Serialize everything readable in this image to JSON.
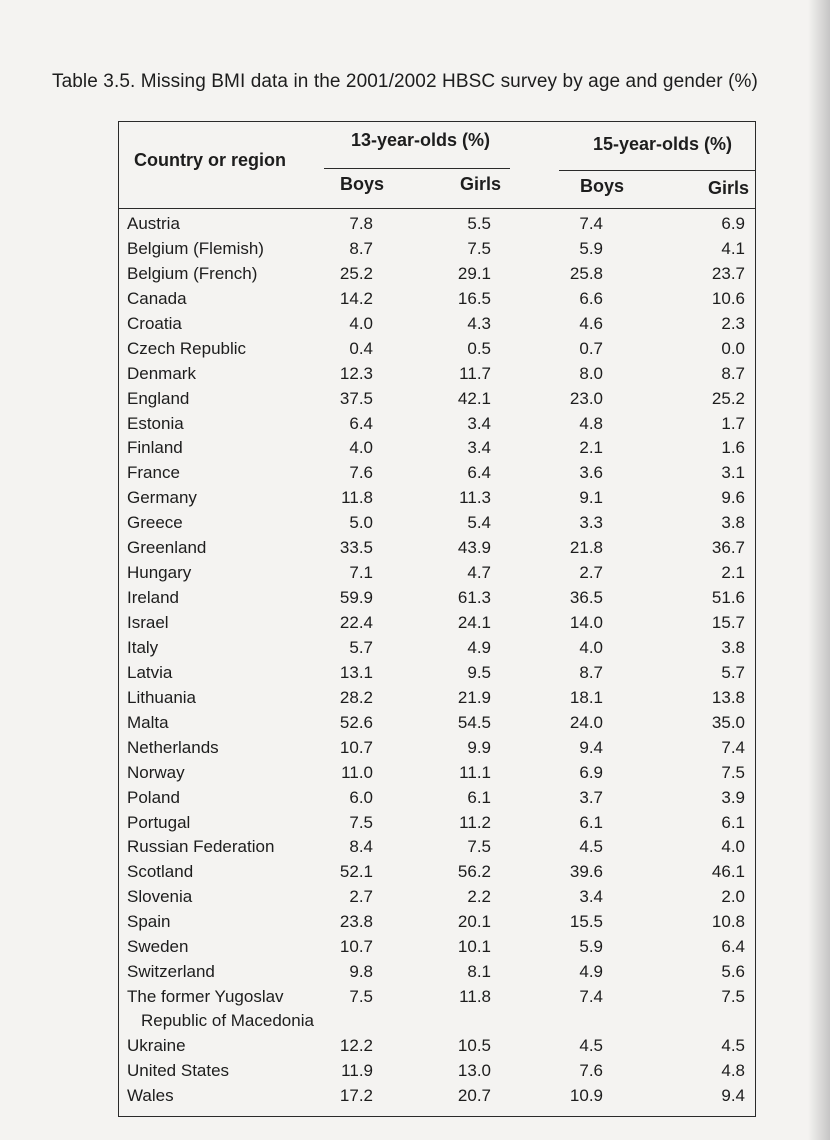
{
  "caption": "Table 3.5. Missing BMI data in the 2001/2002 HBSC survey by age and gender (%)",
  "headers": {
    "country": "Country or region",
    "age13": "13-year-olds (%)",
    "age15": "15-year-olds (%)",
    "boys": "Boys",
    "girls": "Girls"
  },
  "rows": [
    {
      "name": "Austria",
      "b13": "7.8",
      "g13": "5.5",
      "b15": "7.4",
      "g15": "6.9"
    },
    {
      "name": "Belgium (Flemish)",
      "b13": "8.7",
      "g13": "7.5",
      "b15": "5.9",
      "g15": "4.1"
    },
    {
      "name": "Belgium (French)",
      "b13": "25.2",
      "g13": "29.1",
      "b15": "25.8",
      "g15": "23.7"
    },
    {
      "name": "Canada",
      "b13": "14.2",
      "g13": "16.5",
      "b15": "6.6",
      "g15": "10.6"
    },
    {
      "name": "Croatia",
      "b13": "4.0",
      "g13": "4.3",
      "b15": "4.6",
      "g15": "2.3"
    },
    {
      "name": "Czech Republic",
      "b13": "0.4",
      "g13": "0.5",
      "b15": "0.7",
      "g15": "0.0"
    },
    {
      "name": "Denmark",
      "b13": "12.3",
      "g13": "11.7",
      "b15": "8.0",
      "g15": "8.7"
    },
    {
      "name": "England",
      "b13": "37.5",
      "g13": "42.1",
      "b15": "23.0",
      "g15": "25.2"
    },
    {
      "name": "Estonia",
      "b13": "6.4",
      "g13": "3.4",
      "b15": "4.8",
      "g15": "1.7"
    },
    {
      "name": "Finland",
      "b13": "4.0",
      "g13": "3.4",
      "b15": "2.1",
      "g15": "1.6"
    },
    {
      "name": "France",
      "b13": "7.6",
      "g13": "6.4",
      "b15": "3.6",
      "g15": "3.1"
    },
    {
      "name": "Germany",
      "b13": "11.8",
      "g13": "11.3",
      "b15": "9.1",
      "g15": "9.6"
    },
    {
      "name": "Greece",
      "b13": "5.0",
      "g13": "5.4",
      "b15": "3.3",
      "g15": "3.8"
    },
    {
      "name": "Greenland",
      "b13": "33.5",
      "g13": "43.9",
      "b15": "21.8",
      "g15": "36.7"
    },
    {
      "name": "Hungary",
      "b13": "7.1",
      "g13": "4.7",
      "b15": "2.7",
      "g15": "2.1"
    },
    {
      "name": "Ireland",
      "b13": "59.9",
      "g13": "61.3",
      "b15": "36.5",
      "g15": "51.6"
    },
    {
      "name": "Israel",
      "b13": "22.4",
      "g13": "24.1",
      "b15": "14.0",
      "g15": "15.7"
    },
    {
      "name": "Italy",
      "b13": "5.7",
      "g13": "4.9",
      "b15": "4.0",
      "g15": "3.8"
    },
    {
      "name": "Latvia",
      "b13": "13.1",
      "g13": "9.5",
      "b15": "8.7",
      "g15": "5.7"
    },
    {
      "name": "Lithuania",
      "b13": "28.2",
      "g13": "21.9",
      "b15": "18.1",
      "g15": "13.8"
    },
    {
      "name": "Malta",
      "b13": "52.6",
      "g13": "54.5",
      "b15": "24.0",
      "g15": "35.0"
    },
    {
      "name": "Netherlands",
      "b13": "10.7",
      "g13": "9.9",
      "b15": "9.4",
      "g15": "7.4"
    },
    {
      "name": "Norway",
      "b13": "11.0",
      "g13": "11.1",
      "b15": "6.9",
      "g15": "7.5"
    },
    {
      "name": "Poland",
      "b13": "6.0",
      "g13": "6.1",
      "b15": "3.7",
      "g15": "3.9"
    },
    {
      "name": "Portugal",
      "b13": "7.5",
      "g13": "11.2",
      "b15": "6.1",
      "g15": "6.1"
    },
    {
      "name": "Russian Federation",
      "b13": "8.4",
      "g13": "7.5",
      "b15": "4.5",
      "g15": "4.0"
    },
    {
      "name": "Scotland",
      "b13": "52.1",
      "g13": "56.2",
      "b15": "39.6",
      "g15": "46.1"
    },
    {
      "name": "Slovenia",
      "b13": "2.7",
      "g13": "2.2",
      "b15": "3.4",
      "g15": "2.0"
    },
    {
      "name": "Spain",
      "b13": "23.8",
      "g13": "20.1",
      "b15": "15.5",
      "g15": "10.8"
    },
    {
      "name": "Sweden",
      "b13": "10.7",
      "g13": "10.1",
      "b15": "5.9",
      "g15": "6.4"
    },
    {
      "name": "Switzerland",
      "b13": "9.8",
      "g13": "8.1",
      "b15": "4.9",
      "g15": "5.6"
    },
    {
      "name": "The former Yugoslav",
      "name2": "Republic of Macedonia",
      "b13": "7.5",
      "g13": "11.8",
      "b15": "7.4",
      "g15": "7.5"
    },
    {
      "name": "Ukraine",
      "b13": "12.2",
      "g13": "10.5",
      "b15": "4.5",
      "g15": "4.5"
    },
    {
      "name": "United States",
      "b13": "11.9",
      "g13": "13.0",
      "b15": "7.6",
      "g15": "4.8"
    },
    {
      "name": "Wales",
      "b13": "17.2",
      "g13": "20.7",
      "b15": "10.9",
      "g15": "9.4"
    }
  ]
}
